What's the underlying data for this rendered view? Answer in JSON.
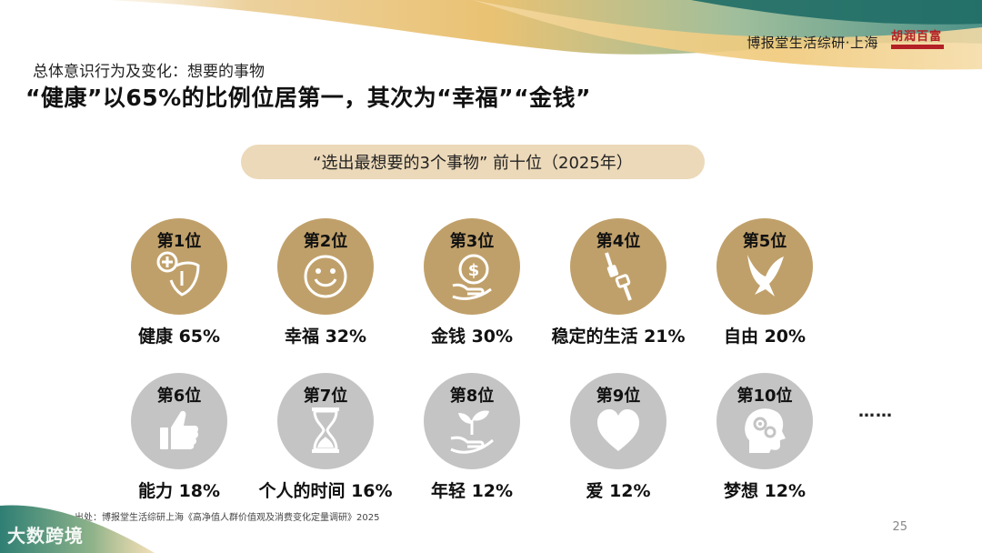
{
  "header": {
    "brand": "博报堂生活综研·上海",
    "logo_text": "胡润百富"
  },
  "subtitle": "总体意识行为及变化：想要的事物",
  "title": "“健康”以65%的比例位居第一，其次为“幸福”“金钱”",
  "pill": "“选出最想要的3个事物” 前十位（2025年）",
  "items": [
    {
      "rank": "第1位",
      "label": "健康 65%",
      "icon": "health-icon"
    },
    {
      "rank": "第2位",
      "label": "幸福 32%",
      "icon": "smiley-icon"
    },
    {
      "rank": "第3位",
      "label": "金钱 30%",
      "icon": "money-icon"
    },
    {
      "rank": "第4位",
      "label": "稳定的生活 21%",
      "icon": "seatbelt-icon"
    },
    {
      "rank": "第5位",
      "label": "自由 20%",
      "icon": "dove-icon"
    },
    {
      "rank": "第6位",
      "label": "能力 18%",
      "icon": "thumbs-up-icon"
    },
    {
      "rank": "第7位",
      "label": "个人的时间 16%",
      "icon": "hourglass-icon"
    },
    {
      "rank": "第8位",
      "label": "年轻 12%",
      "icon": "sprout-hand-icon"
    },
    {
      "rank": "第9位",
      "label": "爱 12%",
      "icon": "heart-icon"
    },
    {
      "rank": "第10位",
      "label": "梦想 12%",
      "icon": "head-gears-icon"
    }
  ],
  "ellipsis": "……",
  "source": "出处：博报堂生活综研上海《高净值人群价值观及消费变化定量调研》2025",
  "page_number": "25",
  "watermark": "大数跨境",
  "colors": {
    "gold": "#c0a06a",
    "grey": "#c4c4c4",
    "pill": "#ecd9b9",
    "brand_red": "#b32025"
  }
}
